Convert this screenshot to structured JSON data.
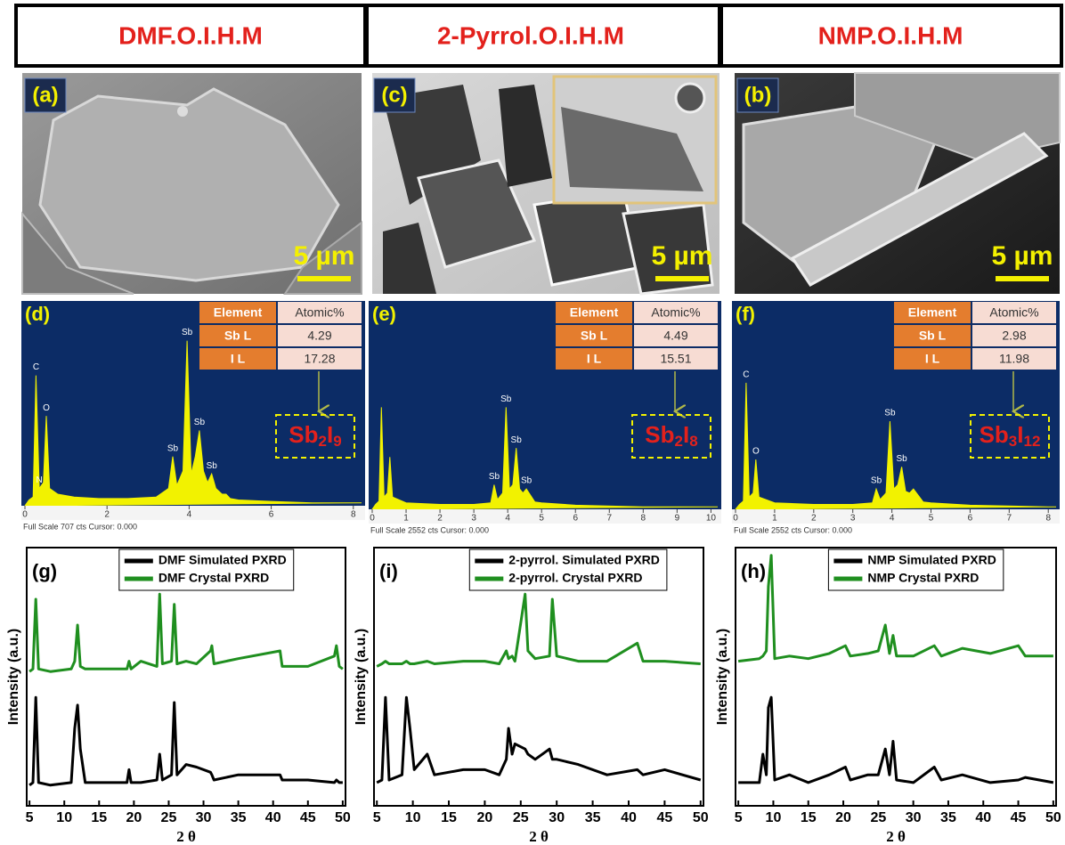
{
  "headers": [
    "DMF.O.I.H.M",
    "2-Pyrrol.O.I.H.M",
    "NMP.O.I.H.M"
  ],
  "sem_panels": [
    {
      "label": "(a)",
      "scale": "5 µm"
    },
    {
      "label": "(c)",
      "scale": "5 µm"
    },
    {
      "label": "(b)",
      "scale": "5 µm"
    }
  ],
  "chart_data": [
    {
      "type": "area",
      "panel": "(d)",
      "footer": "Full Scale 707 cts Cursor: 0.000",
      "xlim": [
        0,
        8.2
      ],
      "xticks": [
        0,
        2,
        4,
        6,
        8
      ],
      "ylim": [
        0,
        707
      ],
      "color": "#f2f200",
      "x": [
        0,
        0.1,
        0.2,
        0.27,
        0.35,
        0.45,
        0.52,
        0.6,
        0.8,
        1.2,
        1.8,
        2.5,
        3.2,
        3.5,
        3.6,
        3.7,
        3.85,
        3.95,
        4.05,
        4.15,
        4.25,
        4.35,
        4.45,
        4.55,
        4.65,
        4.8,
        4.9,
        5.0,
        5.2,
        6,
        7,
        8.2
      ],
      "values": [
        0,
        20,
        30,
        450,
        60,
        80,
        310,
        60,
        40,
        30,
        25,
        25,
        30,
        60,
        170,
        70,
        120,
        570,
        110,
        170,
        260,
        120,
        80,
        110,
        60,
        40,
        40,
        25,
        20,
        15,
        10,
        10
      ],
      "peak_labels": [
        {
          "x": 0.27,
          "text": "C"
        },
        {
          "x": 0.35,
          "text": "N"
        },
        {
          "x": 0.52,
          "text": "O"
        },
        {
          "x": 3.6,
          "text": "Sb"
        },
        {
          "x": 3.95,
          "text": "Sb"
        },
        {
          "x": 4.25,
          "text": "Sb"
        },
        {
          "x": 4.55,
          "text": "Sb"
        }
      ],
      "table": {
        "header": [
          "Element",
          "Atomic%"
        ],
        "rows": [
          [
            "Sb L",
            4.29
          ],
          [
            "I L",
            17.28
          ]
        ]
      },
      "formula": [
        "Sb",
        "2",
        "I",
        "9"
      ]
    },
    {
      "type": "area",
      "panel": "(e)",
      "footer": "Full Scale 2552 cts Cursor: 0.000",
      "xlim": [
        0,
        10.2
      ],
      "xticks": [
        0,
        1,
        2,
        3,
        4,
        5,
        6,
        7,
        8,
        9,
        10
      ],
      "ylim": [
        0,
        2552
      ],
      "color": "#f2f200",
      "x": [
        0,
        0.1,
        0.2,
        0.27,
        0.35,
        0.45,
        0.52,
        0.6,
        1,
        2,
        3,
        3.5,
        3.6,
        3.7,
        3.85,
        3.95,
        4.05,
        4.15,
        4.25,
        4.35,
        4.45,
        4.55,
        4.8,
        5.0,
        6,
        8,
        10.2
      ],
      "values": [
        0,
        60,
        100,
        1250,
        150,
        200,
        640,
        150,
        80,
        60,
        60,
        80,
        300,
        120,
        200,
        1250,
        250,
        300,
        750,
        250,
        200,
        250,
        90,
        80,
        50,
        30,
        30
      ],
      "peak_labels": [
        {
          "x": 3.6,
          "text": "Sb"
        },
        {
          "x": 3.95,
          "text": "Sb"
        },
        {
          "x": 4.25,
          "text": "Sb"
        },
        {
          "x": 4.55,
          "text": "Sb"
        }
      ],
      "table": {
        "header": [
          "Element",
          "Atomic%"
        ],
        "rows": [
          [
            "Sb L",
            4.49
          ],
          [
            "I L",
            15.51
          ]
        ]
      },
      "formula": [
        "Sb",
        "2",
        "I",
        "8"
      ]
    },
    {
      "type": "area",
      "panel": "(f)",
      "footer": "Full Scale 2552 cts Cursor: 0.000",
      "xlim": [
        0,
        8.2
      ],
      "xticks": [
        0,
        1,
        2,
        3,
        4,
        5,
        6,
        7,
        8
      ],
      "ylim": [
        0,
        2552
      ],
      "color": "#f2f200",
      "x": [
        0,
        0.1,
        0.2,
        0.27,
        0.35,
        0.45,
        0.52,
        0.6,
        1,
        2,
        3,
        3.5,
        3.6,
        3.7,
        3.85,
        3.95,
        4.05,
        4.15,
        4.25,
        4.35,
        4.45,
        4.55,
        4.8,
        5.0,
        6,
        8,
        8.2
      ],
      "values": [
        0,
        60,
        100,
        1550,
        150,
        200,
        610,
        150,
        80,
        60,
        60,
        80,
        250,
        120,
        200,
        1080,
        250,
        300,
        520,
        220,
        200,
        250,
        90,
        80,
        50,
        30,
        30
      ],
      "peak_labels": [
        {
          "x": 0.27,
          "text": "C"
        },
        {
          "x": 0.52,
          "text": "O"
        },
        {
          "x": 3.6,
          "text": "Sb"
        },
        {
          "x": 3.95,
          "text": "Sb"
        },
        {
          "x": 4.25,
          "text": "Sb"
        }
      ],
      "table": {
        "header": [
          "Element",
          "Atomic%"
        ],
        "rows": [
          [
            "Sb L",
            2.98
          ],
          [
            "I L",
            11.98
          ]
        ]
      },
      "formula": [
        "Sb",
        "3",
        "I",
        "12"
      ]
    },
    {
      "type": "line",
      "panel": "(g)",
      "x_label": "2 θ",
      "y_label": "Intensity (a.u.)",
      "xlim": [
        4.6,
        50.4
      ],
      "xticks": [
        5,
        10,
        15,
        20,
        25,
        30,
        35,
        40,
        45,
        50
      ],
      "ylim": [
        0,
        100
      ],
      "x": [
        5,
        5.5,
        5.9,
        6.3,
        8,
        11,
        11.5,
        11.9,
        12.3,
        13,
        16,
        19,
        19.3,
        19.6,
        21,
        23.3,
        23.7,
        24.1,
        25.4,
        25.8,
        26.2,
        27.5,
        29,
        31,
        31.2,
        31.5,
        35,
        41,
        41.3,
        45,
        48.8,
        49.1,
        49.5,
        50
      ],
      "series": [
        {
          "name": "DMF Simulated PXRD",
          "color": "#000000",
          "values": [
            8,
            9,
            42,
            9,
            8,
            9,
            30,
            39,
            22,
            9,
            9,
            9,
            14,
            9,
            9,
            10,
            20,
            10,
            12,
            40,
            12,
            16,
            15,
            13,
            12,
            10,
            12,
            12,
            10,
            10,
            9,
            10,
            9,
            9
          ]
        },
        {
          "name": "DMF Crystal PXRD",
          "color": "#1f8f1f",
          "values": [
            52,
            53,
            80,
            53,
            52,
            53,
            56,
            70,
            54,
            53,
            53,
            53,
            56,
            53,
            56,
            54,
            82,
            55,
            56,
            78,
            55,
            56,
            55,
            60,
            62,
            55,
            57,
            60,
            54,
            54,
            58,
            62,
            54,
            53
          ]
        }
      ]
    },
    {
      "type": "line",
      "panel": "(i)",
      "x_label": "2 θ",
      "y_label": "Intensity (a.u.)",
      "xlim": [
        4.6,
        50.4
      ],
      "xticks": [
        5,
        10,
        15,
        20,
        25,
        30,
        35,
        40,
        45,
        50
      ],
      "ylim": [
        0,
        100
      ],
      "x": [
        5,
        5.7,
        6.2,
        6.7,
        8.5,
        9.1,
        9.6,
        10.2,
        12,
        13,
        17,
        20,
        22,
        23,
        23.3,
        23.8,
        24.2,
        25.6,
        26,
        27,
        29,
        29.4,
        30,
        33,
        37,
        41.2,
        42,
        45,
        50
      ],
      "series": [
        {
          "name": "2-pyrrol. Simulated PXRD",
          "color": "#000000",
          "values": [
            9,
            10,
            42,
            10,
            12,
            42,
            30,
            14,
            20,
            12,
            14,
            14,
            12,
            18,
            30,
            20,
            24,
            22,
            20,
            18,
            22,
            18,
            18,
            16,
            12,
            14,
            12,
            14,
            10
          ]
        },
        {
          "name": "2-pyrrol. Crystal PXRD",
          "color": "#1f8f1f",
          "values": [
            54,
            55,
            56,
            55,
            55,
            56,
            55,
            55,
            56,
            55,
            56,
            56,
            55,
            60,
            57,
            58,
            56,
            82,
            60,
            57,
            58,
            80,
            58,
            56,
            56,
            63,
            56,
            56,
            55
          ]
        }
      ]
    },
    {
      "type": "line",
      "panel": "(h)",
      "x_label": "2 θ",
      "y_label": "Intensity (a.u.)",
      "xlim": [
        4.6,
        50.4
      ],
      "xticks": [
        5,
        10,
        15,
        20,
        25,
        30,
        35,
        40,
        45,
        50
      ],
      "ylim": [
        0,
        100
      ],
      "x": [
        5,
        8,
        8.5,
        9.0,
        9.3,
        9.7,
        10.2,
        12.3,
        15,
        18,
        20.3,
        21,
        23.5,
        25,
        26,
        26.6,
        27.1,
        27.6,
        30,
        33,
        34,
        37,
        41,
        45,
        46,
        50
      ],
      "series": [
        {
          "name": "NMP Simulated PXRD",
          "color": "#000000",
          "values": [
            9,
            9,
            20,
            12,
            38,
            42,
            10,
            12,
            9,
            12,
            15,
            10,
            12,
            12,
            22,
            12,
            25,
            10,
            9,
            15,
            10,
            12,
            9,
            10,
            11,
            9
          ]
        },
        {
          "name": "NMP Crystal PXRD",
          "color": "#1f8f1f",
          "values": [
            56,
            57,
            58,
            60,
            85,
            97,
            57,
            58,
            57,
            59,
            62,
            58,
            59,
            60,
            70,
            59,
            66,
            58,
            58,
            62,
            58,
            61,
            59,
            62,
            58,
            58
          ]
        }
      ]
    }
  ]
}
